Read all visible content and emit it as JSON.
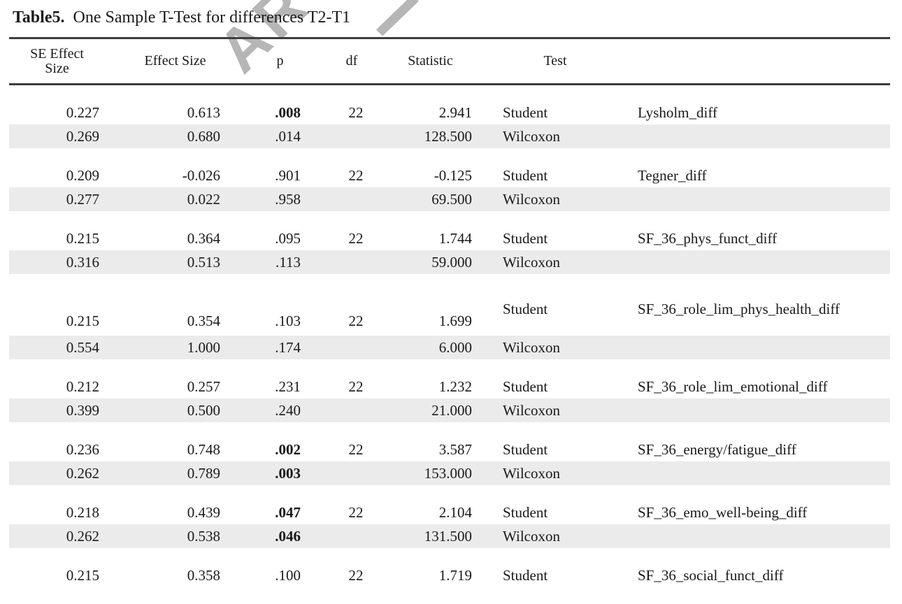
{
  "colors": {
    "shaded": "#ebebeb",
    "rule": "#3d3d3d",
    "watermark": "#b6b6b6",
    "text": "#1a1a1a"
  },
  "watermark": {
    "text": "ART"
  },
  "title": {
    "bold": "Table5.",
    "rest": "One Sample T-Test for differences T2-T1"
  },
  "table": {
    "columns": [
      "SE Effect Size",
      "Effect Size",
      "p",
      "df",
      "Statistic",
      "Test",
      ""
    ],
    "groups": [
      {
        "rows": [
          {
            "se": "0.227",
            "effect": "0.613",
            "p": ".008",
            "p_bold": true,
            "df": "22",
            "statistic": "2.941",
            "test": "Student",
            "label": "Lysholm_diff",
            "shaded": false
          },
          {
            "se": "0.269",
            "effect": "0.680",
            "p": ".014",
            "p_bold": false,
            "df": "",
            "statistic": "128.500",
            "test": "Wilcoxon",
            "label": "",
            "shaded": true
          }
        ]
      },
      {
        "rows": [
          {
            "se": "0.209",
            "effect": "-0.026",
            "p": ".901",
            "p_bold": false,
            "df": "22",
            "statistic": "-0.125",
            "test": "Student",
            "label": "Tegner_diff",
            "shaded": false
          },
          {
            "se": "0.277",
            "effect": "0.022",
            "p": ".958",
            "p_bold": false,
            "df": "",
            "statistic": "69.500",
            "test": "Wilcoxon",
            "label": "",
            "shaded": true
          }
        ]
      },
      {
        "rows": [
          {
            "se": "0.215",
            "effect": "0.364",
            "p": ".095",
            "p_bold": false,
            "df": "22",
            "statistic": "1.744",
            "test": "Student",
            "label": "SF_36_phys_funct_diff",
            "shaded": false
          },
          {
            "se": "0.316",
            "effect": "0.513",
            "p": ".113",
            "p_bold": false,
            "df": "",
            "statistic": "59.000",
            "test": "Wilcoxon",
            "label": "",
            "shaded": true
          }
        ]
      },
      {
        "rows": [
          {
            "se": "0.215",
            "effect": "0.354",
            "p": ".103",
            "p_bold": false,
            "df": "22",
            "statistic": "1.699",
            "test": "Student",
            "label": "SF_36_role_lim_phys_health_diff",
            "shaded": false
          },
          {
            "se": "0.554",
            "effect": "1.000",
            "p": ".174",
            "p_bold": false,
            "df": "",
            "statistic": "6.000",
            "test": "Wilcoxon",
            "label": "",
            "shaded": true
          }
        ]
      },
      {
        "rows": [
          {
            "se": "0.212",
            "effect": "0.257",
            "p": ".231",
            "p_bold": false,
            "df": "22",
            "statistic": "1.232",
            "test": "Student",
            "label": "SF_36_role_lim_emotional_diff",
            "shaded": false
          },
          {
            "se": "0.399",
            "effect": "0.500",
            "p": ".240",
            "p_bold": false,
            "df": "",
            "statistic": "21.000",
            "test": "Wilcoxon",
            "label": "",
            "shaded": true
          }
        ]
      },
      {
        "rows": [
          {
            "se": "0.236",
            "effect": "0.748",
            "p": ".002",
            "p_bold": true,
            "df": "22",
            "statistic": "3.587",
            "test": "Student",
            "label": "SF_36_energy/fatigue_diff",
            "shaded": false
          },
          {
            "se": "0.262",
            "effect": "0.789",
            "p": ".003",
            "p_bold": true,
            "df": "",
            "statistic": "153.000",
            "test": "Wilcoxon",
            "label": "",
            "shaded": true
          }
        ]
      },
      {
        "rows": [
          {
            "se": "0.218",
            "effect": "0.439",
            "p": ".047",
            "p_bold": true,
            "df": "22",
            "statistic": "2.104",
            "test": "Student",
            "label": "SF_36_emo_well-being_diff",
            "shaded": false
          },
          {
            "se": "0.262",
            "effect": "0.538",
            "p": ".046",
            "p_bold": true,
            "df": "",
            "statistic": "131.500",
            "test": "Wilcoxon",
            "label": "",
            "shaded": true
          }
        ]
      },
      {
        "rows": [
          {
            "se": "0.215",
            "effect": "0.358",
            "p": ".100",
            "p_bold": false,
            "df": "22",
            "statistic": "1.719",
            "test": "Student",
            "label": "SF_36_social_funct_diff",
            "shaded": false
          }
        ]
      }
    ]
  }
}
